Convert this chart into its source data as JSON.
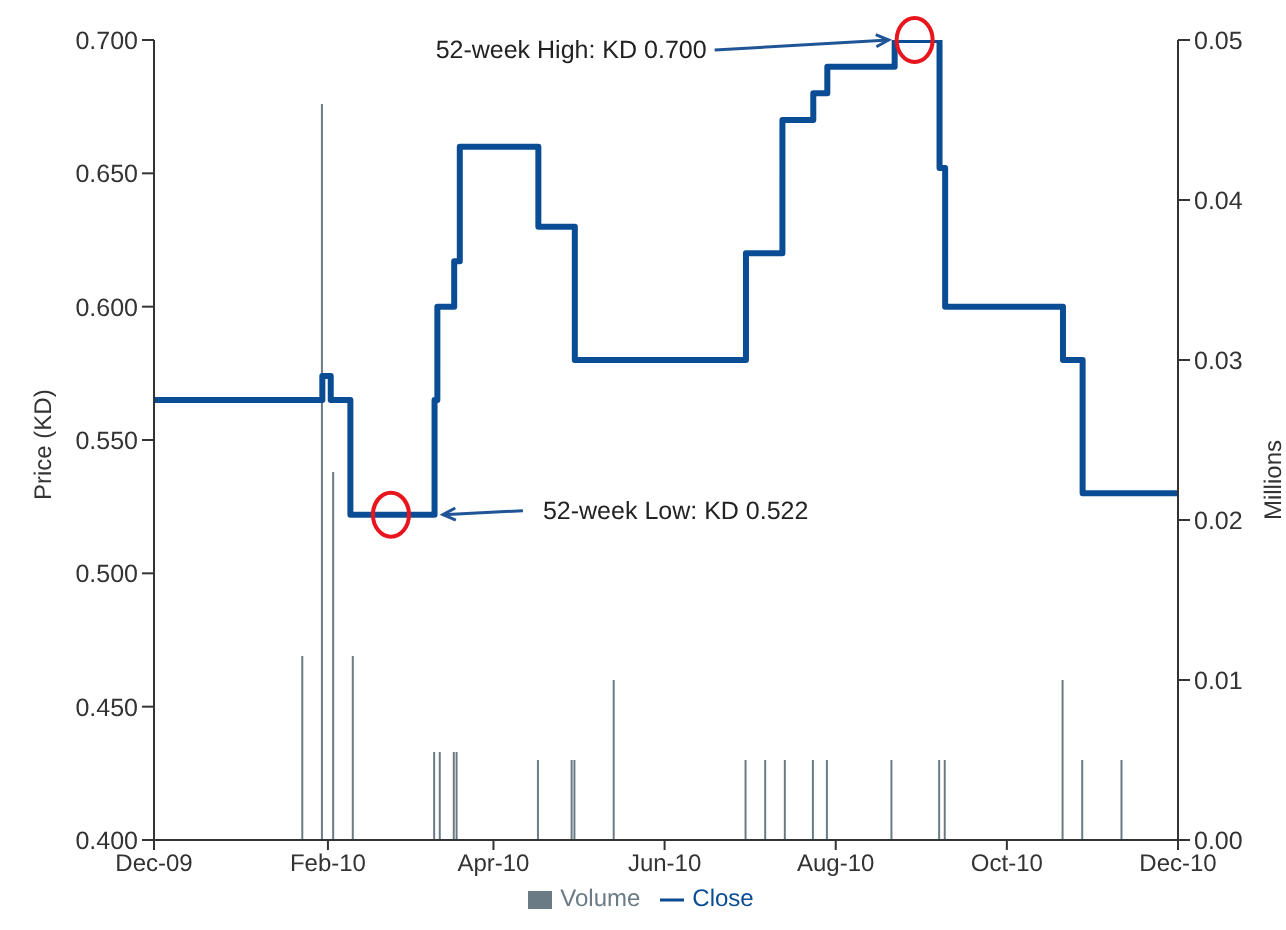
{
  "chart_data": {
    "type": "step",
    "xlabel": null,
    "ylabel": "Price (KD)",
    "y2label": "Millions",
    "xlim": [
      "2009-12-01",
      "2010-12-01"
    ],
    "xticks": [
      {
        "value": "2009-12-01",
        "label": "Dec-09"
      },
      {
        "value": "2010-02-01",
        "label": "Feb-10"
      },
      {
        "value": "2010-04-01",
        "label": "Apr-10"
      },
      {
        "value": "2010-06-01",
        "label": "Jun-10"
      },
      {
        "value": "2010-08-01",
        "label": "Aug-10"
      },
      {
        "value": "2010-10-01",
        "label": "Oct-10"
      },
      {
        "value": "2010-12-01",
        "label": "Dec-10"
      }
    ],
    "ylim": [
      0.4,
      0.7
    ],
    "yticks": [
      {
        "value": 0.4,
        "label": "0.400"
      },
      {
        "value": 0.45,
        "label": "0.450"
      },
      {
        "value": 0.5,
        "label": "0.500"
      },
      {
        "value": 0.55,
        "label": "0.550"
      },
      {
        "value": 0.6,
        "label": "0.600"
      },
      {
        "value": 0.65,
        "label": "0.650"
      },
      {
        "value": 0.7,
        "label": "0.700"
      }
    ],
    "y2lim": [
      0,
      0.05
    ],
    "y2ticks": [
      {
        "value": 0,
        "label": "0.00"
      },
      {
        "value": 0.01,
        "label": "0.01"
      },
      {
        "value": 0.02,
        "label": "0.02"
      },
      {
        "value": 0.03,
        "label": "0.03"
      },
      {
        "value": 0.04,
        "label": "0.04"
      },
      {
        "value": 0.05,
        "label": "0.05"
      }
    ],
    "series": [
      {
        "name": "Volume",
        "type": "bar",
        "axis": "y2",
        "color": "#6b7b86",
        "x": [
          "2010-01-23",
          "2010-01-30",
          "2010-02-03",
          "2010-02-10",
          "2010-03-11",
          "2010-03-13",
          "2010-03-18",
          "2010-03-19",
          "2010-04-17",
          "2010-04-29",
          "2010-04-30",
          "2010-05-14",
          "2010-06-30",
          "2010-07-07",
          "2010-07-14",
          "2010-07-24",
          "2010-07-29",
          "2010-08-21",
          "2010-09-07",
          "2010-09-09",
          "2010-10-21",
          "2010-10-28",
          "2010-11-11"
        ],
        "values": [
          0.0115,
          0.046,
          0.023,
          0.0115,
          0.0055,
          0.0055,
          0.0055,
          0.0055,
          0.005,
          0.005,
          0.005,
          0.01,
          0.005,
          0.005,
          0.005,
          0.005,
          0.005,
          0.005,
          0.005,
          0.005,
          0.01,
          0.005,
          0.005
        ]
      },
      {
        "name": "Close",
        "color": "#0b4d94",
        "x": [
          "2009-12-01",
          "2010-01-30",
          "2010-02-02",
          "2010-02-09",
          "2010-03-11",
          "2010-03-12",
          "2010-03-18",
          "2010-03-20",
          "2010-04-17",
          "2010-04-30",
          "2010-06-30",
          "2010-07-13",
          "2010-07-24",
          "2010-07-29",
          "2010-08-22",
          "2010-09-07",
          "2010-09-09",
          "2010-10-21",
          "2010-10-28",
          "2010-12-01"
        ],
        "values": [
          0.565,
          0.574,
          0.565,
          0.522,
          0.565,
          0.6,
          0.617,
          0.66,
          0.63,
          0.58,
          0.62,
          0.67,
          0.68,
          0.69,
          0.7,
          0.652,
          0.6,
          0.58,
          0.53,
          0.53
        ]
      }
    ],
    "annotations": [
      {
        "text": "52-week High: KD 0.700",
        "x": "2010-08-22",
        "y": 0.7
      },
      {
        "text": "52-week Low: KD 0.522",
        "x": "2010-03-14",
        "y": 0.522
      }
    ],
    "legend": "bottom",
    "grid": false
  }
}
